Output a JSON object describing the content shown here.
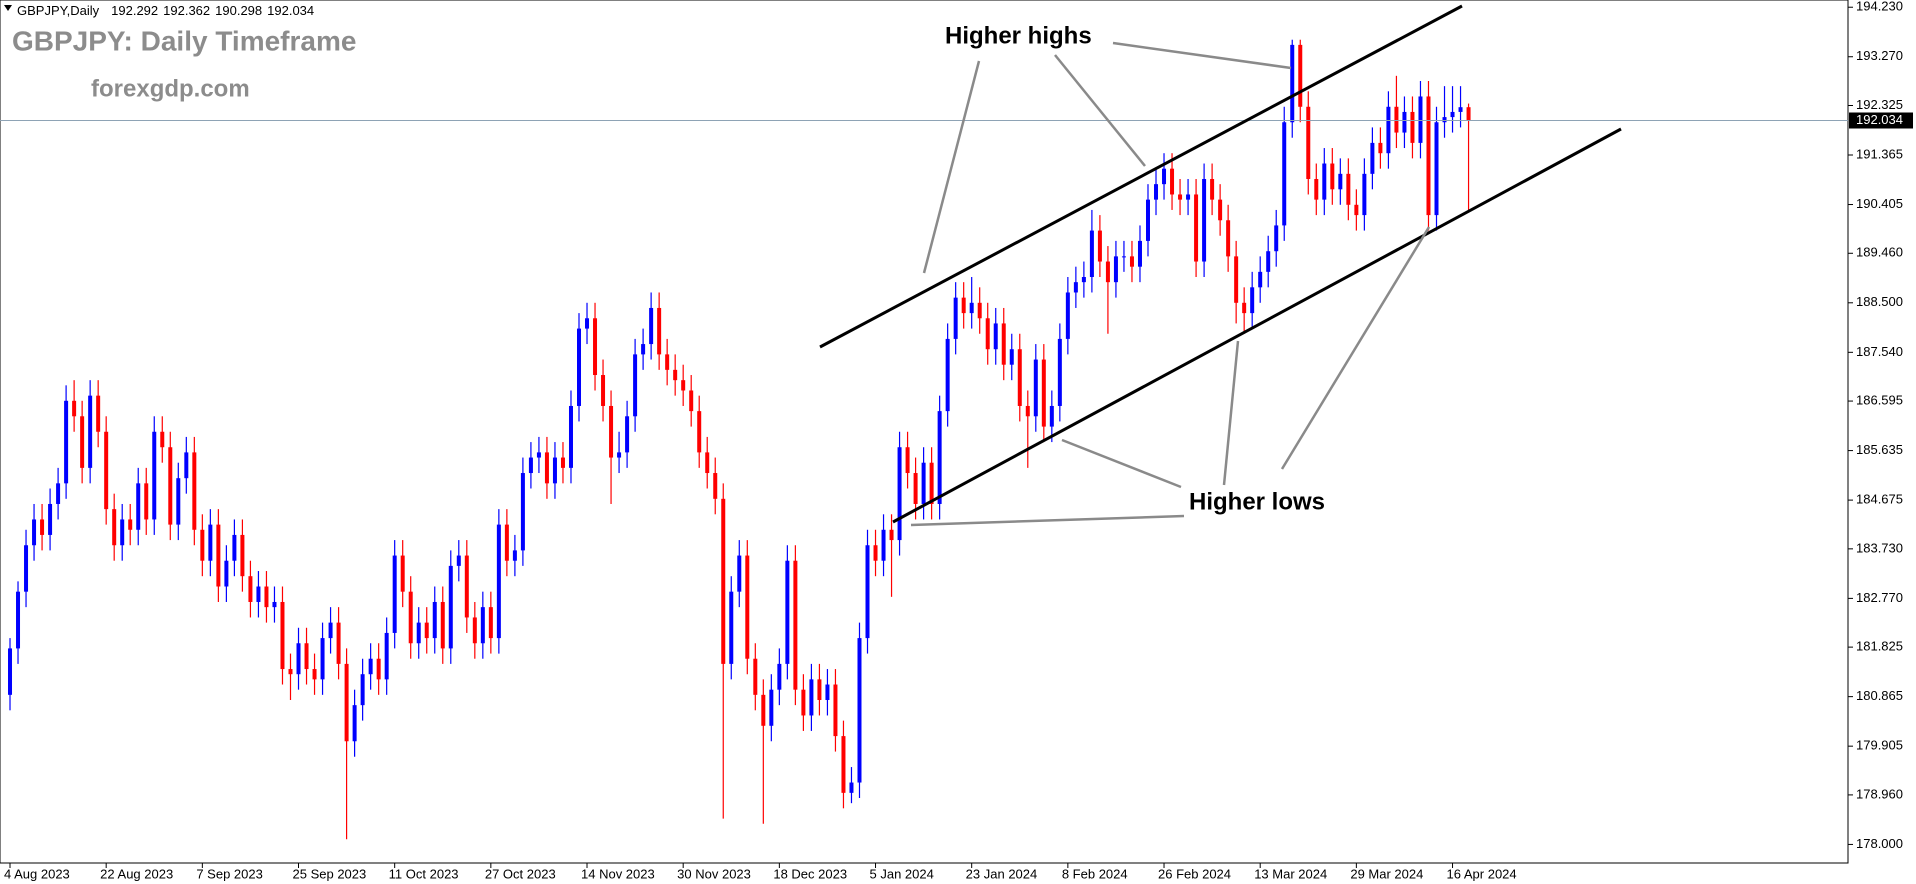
{
  "chart_data": {
    "type": "candlestick",
    "symbol_label": "GBPJPY,Daily",
    "title": "GBPJPY: Daily Timeframe",
    "watermark": "forexgdp.com",
    "annotations": [
      "Higher highs",
      "Higher lows"
    ],
    "up_color": "#0000ff",
    "down_color": "#ff0000",
    "grid": false,
    "categories": [
      "4 Aug 2023",
      null,
      null,
      null,
      null,
      null,
      null,
      null,
      null,
      null,
      null,
      null,
      "22 Aug 2023",
      null,
      null,
      null,
      null,
      null,
      null,
      null,
      null,
      null,
      null,
      null,
      "7 Sep 2023",
      null,
      null,
      null,
      null,
      null,
      null,
      null,
      null,
      null,
      null,
      null,
      "25 Sep 2023",
      null,
      null,
      null,
      null,
      null,
      null,
      null,
      null,
      null,
      null,
      null,
      "11 Oct 2023",
      null,
      null,
      null,
      null,
      null,
      null,
      null,
      null,
      null,
      null,
      null,
      "27 Oct 2023",
      null,
      null,
      null,
      null,
      null,
      null,
      null,
      null,
      null,
      null,
      null,
      "14 Nov 2023",
      null,
      null,
      null,
      null,
      null,
      null,
      null,
      null,
      null,
      null,
      null,
      "30 Nov 2023",
      null,
      null,
      null,
      null,
      null,
      null,
      null,
      null,
      null,
      null,
      null,
      "18 Dec 2023",
      null,
      null,
      null,
      null,
      null,
      null,
      null,
      null,
      null,
      null,
      null,
      "5 Jan 2024",
      null,
      null,
      null,
      null,
      null,
      null,
      null,
      null,
      null,
      null,
      null,
      "23 Jan 2024",
      null,
      null,
      null,
      null,
      null,
      null,
      null,
      null,
      null,
      null,
      null,
      "8 Feb 2024",
      null,
      null,
      null,
      null,
      null,
      null,
      null,
      null,
      null,
      null,
      null,
      "26 Feb 2024",
      null,
      null,
      null,
      null,
      null,
      null,
      null,
      null,
      null,
      null,
      null,
      "13 Mar 2024",
      null,
      null,
      null,
      null,
      null,
      null,
      null,
      null,
      null,
      null,
      null,
      "29 Mar 2024",
      null,
      null,
      null,
      null,
      null,
      null,
      null,
      null,
      null,
      null,
      null,
      "16 Apr 2024",
      null,
      null
    ],
    "ohlc": [
      [
        180.9,
        182.0,
        180.6,
        181.8
      ],
      [
        181.8,
        183.1,
        181.5,
        182.9
      ],
      [
        182.9,
        184.1,
        182.6,
        183.8
      ],
      [
        183.8,
        184.6,
        183.5,
        184.3
      ],
      [
        184.3,
        184.6,
        183.7,
        184.0
      ],
      [
        184.0,
        184.9,
        183.7,
        184.6
      ],
      [
        184.6,
        185.3,
        184.3,
        185.0
      ],
      [
        185.0,
        186.9,
        184.7,
        186.6
      ],
      [
        186.6,
        187.0,
        186.0,
        186.3
      ],
      [
        186.3,
        186.6,
        185.0,
        185.3
      ],
      [
        185.3,
        187.0,
        185.0,
        186.7
      ],
      [
        186.7,
        187.0,
        185.7,
        186.0
      ],
      [
        186.0,
        186.3,
        184.2,
        184.5
      ],
      [
        184.5,
        184.8,
        183.5,
        183.8
      ],
      [
        183.8,
        184.6,
        183.5,
        184.3
      ],
      [
        184.3,
        184.6,
        183.8,
        184.1
      ],
      [
        184.1,
        185.3,
        183.8,
        185.0
      ],
      [
        185.0,
        185.3,
        184.0,
        184.3
      ],
      [
        184.3,
        186.3,
        184.0,
        186.0
      ],
      [
        186.0,
        186.3,
        185.4,
        185.7
      ],
      [
        185.7,
        186.0,
        183.9,
        184.2
      ],
      [
        184.2,
        185.4,
        183.9,
        185.1
      ],
      [
        185.1,
        185.9,
        184.8,
        185.6
      ],
      [
        185.6,
        185.9,
        183.8,
        184.1
      ],
      [
        184.1,
        184.4,
        183.2,
        183.5
      ],
      [
        183.5,
        184.5,
        183.2,
        184.2
      ],
      [
        184.2,
        184.5,
        182.7,
        183.0
      ],
      [
        183.0,
        183.8,
        182.7,
        183.5
      ],
      [
        183.5,
        184.3,
        183.2,
        184.0
      ],
      [
        184.0,
        184.3,
        182.9,
        183.2
      ],
      [
        183.2,
        183.5,
        182.4,
        182.7
      ],
      [
        182.7,
        183.3,
        182.4,
        183.0
      ],
      [
        183.0,
        183.3,
        182.3,
        182.6
      ],
      [
        182.6,
        183.0,
        182.3,
        182.7
      ],
      [
        182.7,
        183.0,
        181.1,
        181.4
      ],
      [
        181.4,
        181.7,
        180.8,
        181.3
      ],
      [
        181.3,
        182.2,
        181.0,
        181.9
      ],
      [
        181.9,
        182.2,
        181.1,
        181.4
      ],
      [
        181.4,
        181.7,
        180.9,
        181.2
      ],
      [
        181.2,
        182.3,
        180.9,
        182.0
      ],
      [
        182.0,
        182.6,
        181.7,
        182.3
      ],
      [
        182.3,
        182.6,
        181.2,
        181.5
      ],
      [
        181.5,
        181.8,
        178.1,
        180.0
      ],
      [
        180.0,
        181.0,
        179.7,
        180.7
      ],
      [
        180.7,
        181.6,
        180.4,
        181.3
      ],
      [
        181.3,
        181.9,
        181.0,
        181.6
      ],
      [
        181.6,
        181.9,
        180.9,
        181.2
      ],
      [
        181.2,
        182.4,
        180.9,
        182.1
      ],
      [
        182.1,
        183.9,
        181.8,
        183.6
      ],
      [
        183.6,
        183.9,
        182.6,
        182.9
      ],
      [
        182.9,
        183.2,
        181.6,
        181.9
      ],
      [
        181.9,
        182.6,
        181.6,
        182.3
      ],
      [
        182.3,
        182.6,
        181.7,
        182.0
      ],
      [
        182.0,
        183.0,
        181.7,
        182.7
      ],
      [
        182.7,
        183.0,
        181.5,
        181.8
      ],
      [
        181.8,
        183.7,
        181.5,
        183.4
      ],
      [
        183.4,
        183.9,
        183.1,
        183.6
      ],
      [
        183.6,
        183.9,
        182.1,
        182.4
      ],
      [
        182.4,
        182.7,
        181.6,
        181.9
      ],
      [
        181.9,
        182.9,
        181.6,
        182.6
      ],
      [
        182.6,
        182.9,
        181.7,
        182.0
      ],
      [
        182.0,
        184.5,
        181.7,
        184.2
      ],
      [
        184.2,
        184.5,
        183.2,
        183.5
      ],
      [
        183.5,
        184.0,
        183.2,
        183.7
      ],
      [
        183.7,
        185.5,
        183.4,
        185.2
      ],
      [
        185.2,
        185.8,
        184.9,
        185.5
      ],
      [
        185.5,
        185.9,
        185.2,
        185.6
      ],
      [
        185.6,
        185.9,
        184.7,
        185.0
      ],
      [
        185.0,
        185.8,
        184.7,
        185.5
      ],
      [
        185.5,
        185.8,
        185.0,
        185.3
      ],
      [
        185.3,
        186.8,
        185.0,
        186.5
      ],
      [
        186.5,
        188.3,
        186.2,
        188.0
      ],
      [
        188.0,
        188.5,
        187.7,
        188.2
      ],
      [
        188.2,
        188.5,
        186.8,
        187.1
      ],
      [
        187.1,
        187.4,
        186.2,
        186.5
      ],
      [
        186.5,
        186.8,
        184.6,
        185.5
      ],
      [
        185.5,
        186.0,
        185.2,
        185.6
      ],
      [
        185.6,
        186.6,
        185.3,
        186.3
      ],
      [
        186.3,
        187.8,
        186.0,
        187.5
      ],
      [
        187.5,
        188.0,
        187.2,
        187.7
      ],
      [
        187.7,
        188.7,
        187.4,
        188.4
      ],
      [
        188.4,
        188.7,
        187.2,
        187.5
      ],
      [
        187.5,
        187.8,
        186.9,
        187.2
      ],
      [
        187.2,
        187.5,
        186.7,
        187.0
      ],
      [
        187.0,
        187.3,
        186.5,
        186.8
      ],
      [
        186.8,
        187.1,
        186.1,
        186.4
      ],
      [
        186.4,
        186.7,
        185.3,
        185.6
      ],
      [
        185.6,
        185.9,
        184.9,
        185.2
      ],
      [
        185.2,
        185.5,
        184.4,
        184.7
      ],
      [
        184.7,
        185.0,
        178.5,
        181.5
      ],
      [
        181.5,
        183.2,
        181.2,
        182.9
      ],
      [
        182.9,
        183.9,
        182.6,
        183.6
      ],
      [
        183.6,
        183.9,
        181.3,
        181.6
      ],
      [
        181.6,
        181.9,
        180.6,
        180.9
      ],
      [
        180.9,
        181.2,
        178.4,
        180.3
      ],
      [
        180.3,
        181.3,
        180.0,
        181.0
      ],
      [
        181.0,
        181.8,
        180.7,
        181.5
      ],
      [
        181.5,
        183.8,
        181.2,
        183.5
      ],
      [
        183.5,
        183.8,
        180.7,
        181.0
      ],
      [
        181.0,
        181.3,
        180.2,
        180.5
      ],
      [
        180.5,
        181.5,
        180.2,
        181.2
      ],
      [
        181.2,
        181.5,
        180.5,
        180.8
      ],
      [
        180.8,
        181.4,
        180.5,
        181.1
      ],
      [
        181.1,
        181.4,
        179.8,
        180.1
      ],
      [
        180.1,
        180.4,
        178.7,
        179.0
      ],
      [
        179.0,
        179.5,
        178.8,
        179.2
      ],
      [
        179.2,
        182.3,
        178.9,
        182.0
      ],
      [
        182.0,
        184.1,
        181.7,
        183.8
      ],
      [
        183.8,
        184.1,
        183.2,
        183.5
      ],
      [
        183.5,
        184.4,
        183.2,
        184.1
      ],
      [
        184.1,
        184.4,
        182.8,
        183.9
      ],
      [
        183.9,
        186.0,
        183.6,
        185.7
      ],
      [
        185.7,
        186.0,
        184.9,
        185.2
      ],
      [
        185.2,
        185.5,
        184.3,
        184.6
      ],
      [
        184.6,
        185.7,
        184.3,
        185.4
      ],
      [
        185.4,
        185.7,
        184.3,
        184.6
      ],
      [
        184.6,
        186.7,
        184.3,
        186.4
      ],
      [
        186.4,
        188.1,
        186.1,
        187.8
      ],
      [
        187.8,
        188.9,
        187.5,
        188.6
      ],
      [
        188.6,
        188.9,
        188.0,
        188.3
      ],
      [
        188.3,
        189.0,
        188.0,
        188.5
      ],
      [
        188.5,
        188.8,
        187.9,
        188.2
      ],
      [
        188.2,
        188.5,
        187.3,
        187.6
      ],
      [
        187.6,
        188.4,
        187.3,
        188.1
      ],
      [
        188.1,
        188.4,
        187.0,
        187.3
      ],
      [
        187.3,
        187.9,
        187.0,
        187.6
      ],
      [
        187.6,
        187.9,
        186.2,
        186.5
      ],
      [
        186.5,
        186.8,
        185.3,
        186.3
      ],
      [
        186.3,
        187.7,
        186.0,
        187.4
      ],
      [
        187.4,
        187.7,
        185.8,
        186.1
      ],
      [
        186.1,
        186.8,
        185.8,
        186.5
      ],
      [
        186.5,
        188.1,
        186.2,
        187.8
      ],
      [
        187.8,
        189.0,
        187.5,
        188.7
      ],
      [
        188.7,
        189.2,
        188.4,
        188.9
      ],
      [
        188.9,
        189.3,
        188.6,
        189.0
      ],
      [
        189.0,
        190.3,
        188.7,
        189.9
      ],
      [
        189.9,
        190.2,
        189.0,
        189.3
      ],
      [
        189.3,
        189.6,
        187.9,
        188.9
      ],
      [
        188.9,
        189.7,
        188.6,
        189.4
      ],
      [
        189.4,
        189.7,
        189.1,
        189.4
      ],
      [
        189.4,
        189.7,
        188.9,
        189.2
      ],
      [
        189.2,
        190.0,
        188.9,
        189.7
      ],
      [
        189.7,
        190.8,
        189.4,
        190.5
      ],
      [
        190.5,
        191.1,
        190.2,
        190.8
      ],
      [
        190.8,
        191.4,
        190.5,
        191.1
      ],
      [
        191.1,
        191.4,
        190.3,
        190.6
      ],
      [
        190.6,
        190.9,
        190.2,
        190.5
      ],
      [
        190.5,
        190.9,
        190.2,
        190.6
      ],
      [
        190.6,
        190.9,
        189.0,
        189.3
      ],
      [
        189.3,
        191.2,
        189.0,
        190.9
      ],
      [
        190.9,
        191.2,
        190.2,
        190.5
      ],
      [
        190.5,
        190.8,
        189.8,
        190.1
      ],
      [
        190.1,
        190.4,
        189.1,
        189.4
      ],
      [
        189.4,
        189.7,
        188.1,
        188.5
      ],
      [
        188.5,
        188.8,
        187.9,
        188.3
      ],
      [
        188.3,
        189.1,
        188.0,
        188.8
      ],
      [
        188.8,
        189.4,
        188.5,
        189.1
      ],
      [
        189.1,
        189.8,
        188.8,
        189.5
      ],
      [
        189.5,
        190.3,
        189.2,
        190.0
      ],
      [
        190.0,
        192.3,
        189.7,
        192.0
      ],
      [
        192.0,
        193.6,
        191.7,
        193.5
      ],
      [
        193.5,
        193.6,
        192.0,
        192.3
      ],
      [
        192.3,
        192.6,
        190.6,
        190.9
      ],
      [
        190.9,
        191.2,
        190.2,
        190.5
      ],
      [
        190.5,
        191.5,
        190.2,
        191.2
      ],
      [
        191.2,
        191.5,
        190.4,
        190.7
      ],
      [
        190.7,
        191.3,
        190.4,
        191.0
      ],
      [
        191.0,
        191.3,
        190.1,
        190.4
      ],
      [
        190.4,
        190.7,
        189.9,
        190.2
      ],
      [
        190.2,
        191.3,
        189.9,
        191.0
      ],
      [
        191.0,
        191.9,
        190.7,
        191.6
      ],
      [
        191.6,
        191.9,
        191.1,
        191.4
      ],
      [
        191.4,
        192.6,
        191.1,
        192.3
      ],
      [
        192.3,
        192.9,
        191.5,
        191.8
      ],
      [
        191.8,
        192.5,
        191.5,
        192.2
      ],
      [
        192.2,
        192.5,
        191.3,
        191.6
      ],
      [
        191.6,
        192.8,
        191.3,
        192.5
      ],
      [
        192.5,
        192.8,
        189.9,
        190.2
      ],
      [
        190.2,
        192.3,
        189.9,
        192.0
      ],
      [
        192.0,
        192.7,
        191.7,
        192.1
      ],
      [
        192.1,
        192.7,
        191.8,
        192.2
      ],
      [
        192.2,
        192.7,
        191.9,
        192.292
      ],
      [
        192.292,
        192.362,
        190.298,
        192.034
      ]
    ],
    "ylim": [
      177.64,
      194.37
    ],
    "yticks": [
      {
        "value": 194.23,
        "label": "194.230"
      },
      {
        "value": 193.27,
        "label": "193.270"
      },
      192.325,
      191.365,
      190.405,
      {
        "value": 189.46,
        "label": "189.460"
      },
      {
        "value": 188.5,
        "label": "188.500"
      },
      {
        "value": 187.54,
        "label": "187.540"
      },
      186.595,
      185.635,
      184.675,
      {
        "value": 183.73,
        "label": "183.730"
      },
      {
        "value": 182.77,
        "label": "182.770"
      },
      181.825,
      180.865,
      179.905,
      {
        "value": 178.96,
        "label": "178.960"
      },
      {
        "value": 178,
        "label": "178.000"
      }
    ]
  }
}
